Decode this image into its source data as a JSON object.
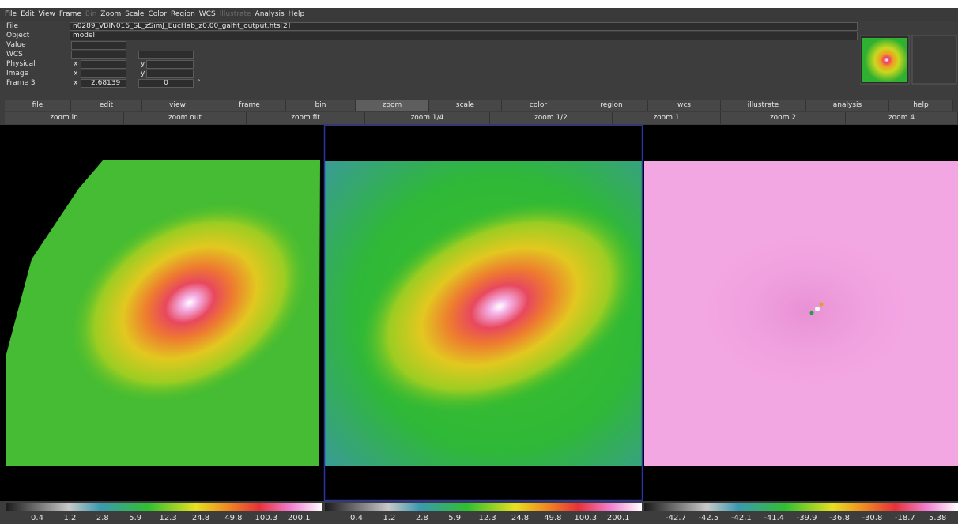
{
  "menubar": [
    {
      "label": "File",
      "enabled": true
    },
    {
      "label": "Edit",
      "enabled": true
    },
    {
      "label": "View",
      "enabled": true
    },
    {
      "label": "Frame",
      "enabled": true
    },
    {
      "label": "Bin",
      "enabled": false
    },
    {
      "label": "Zoom",
      "enabled": true
    },
    {
      "label": "Scale",
      "enabled": true
    },
    {
      "label": "Color",
      "enabled": true
    },
    {
      "label": "Region",
      "enabled": true
    },
    {
      "label": "WCS",
      "enabled": true
    },
    {
      "label": "Illustrate",
      "enabled": false
    },
    {
      "label": "Analysis",
      "enabled": true
    },
    {
      "label": "Help",
      "enabled": true
    }
  ],
  "info": {
    "file_label": "File",
    "file_value": "n0289_VBIN016_SL_zSimJ_EucHab_z0.00_galfit_output.fits[2]",
    "object_label": "Object",
    "object_value": "model",
    "value_label": "Value",
    "wcs_label": "WCS",
    "physical_label": "Physical",
    "physical_x": "x",
    "physical_y": "y",
    "image_label": "Image",
    "image_x": "x",
    "image_y": "y",
    "frame_label": "Frame 3",
    "frame_x": "x",
    "frame_x_value": "2.68139",
    "frame_y_value": "0",
    "frame_unit": "°"
  },
  "buttonbar": [
    {
      "label": "file"
    },
    {
      "label": "edit"
    },
    {
      "label": "view"
    },
    {
      "label": "frame"
    },
    {
      "label": "bin"
    },
    {
      "label": "zoom",
      "selected": true
    },
    {
      "label": "scale"
    },
    {
      "label": "color"
    },
    {
      "label": "region"
    },
    {
      "label": "wcs"
    },
    {
      "label": "illustrate"
    },
    {
      "label": "analysis"
    },
    {
      "label": "help"
    }
  ],
  "zoombar": [
    "zoom in",
    "zoom out",
    "zoom fit",
    "zoom 1/4",
    "zoom 1/2",
    "zoom 1",
    "zoom 2",
    "zoom 4"
  ],
  "frames": [
    {
      "colorbar": [
        "0.4",
        "1.2",
        "2.8",
        "5.9",
        "12.3",
        "24.8",
        "49.8",
        "100.3",
        "200.1"
      ]
    },
    {
      "colorbar": [
        "0.4",
        "1.2",
        "2.8",
        "5.9",
        "12.3",
        "24.8",
        "49.8",
        "100.3",
        "200.1"
      ]
    },
    {
      "colorbar": [
        "-42.7",
        "-42.5",
        "-42.1",
        "-41.4",
        "-39.9",
        "-36.8",
        "-30.8",
        "-18.7",
        "5.38"
      ]
    }
  ]
}
